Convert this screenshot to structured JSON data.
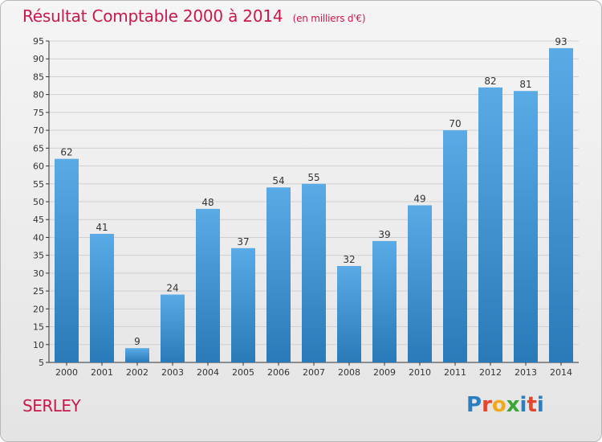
{
  "chart_data": {
    "type": "bar",
    "title": "Résultat Comptable 2000 à 2014",
    "subtitle": "(en milliers d'€)",
    "categories": [
      "2000",
      "2001",
      "2002",
      "2003",
      "2004",
      "2005",
      "2006",
      "2007",
      "2008",
      "2009",
      "2010",
      "2011",
      "2012",
      "2013",
      "2014"
    ],
    "values": [
      62,
      41,
      9,
      24,
      48,
      37,
      54,
      55,
      32,
      39,
      49,
      70,
      82,
      81,
      93
    ],
    "ylim": [
      5,
      95
    ],
    "yticks": [
      5,
      10,
      15,
      20,
      25,
      30,
      35,
      40,
      45,
      50,
      55,
      60,
      65,
      70,
      75,
      80,
      85,
      90,
      95
    ],
    "grid": true,
    "xlabel": "",
    "ylabel": ""
  },
  "place_name": "SERLEY",
  "logo": {
    "text": "Proxiti",
    "letter_colors": [
      "#2b7fc1",
      "#e8442b",
      "#f2a81d",
      "#3aa538",
      "#2b7fc1",
      "#e8442b",
      "#2b7fc1"
    ]
  },
  "colors": {
    "title": "#c8194a",
    "bar_light": "#5aaae6",
    "bar_dark": "#2a7ab9",
    "grid": "#d0d0d0"
  }
}
